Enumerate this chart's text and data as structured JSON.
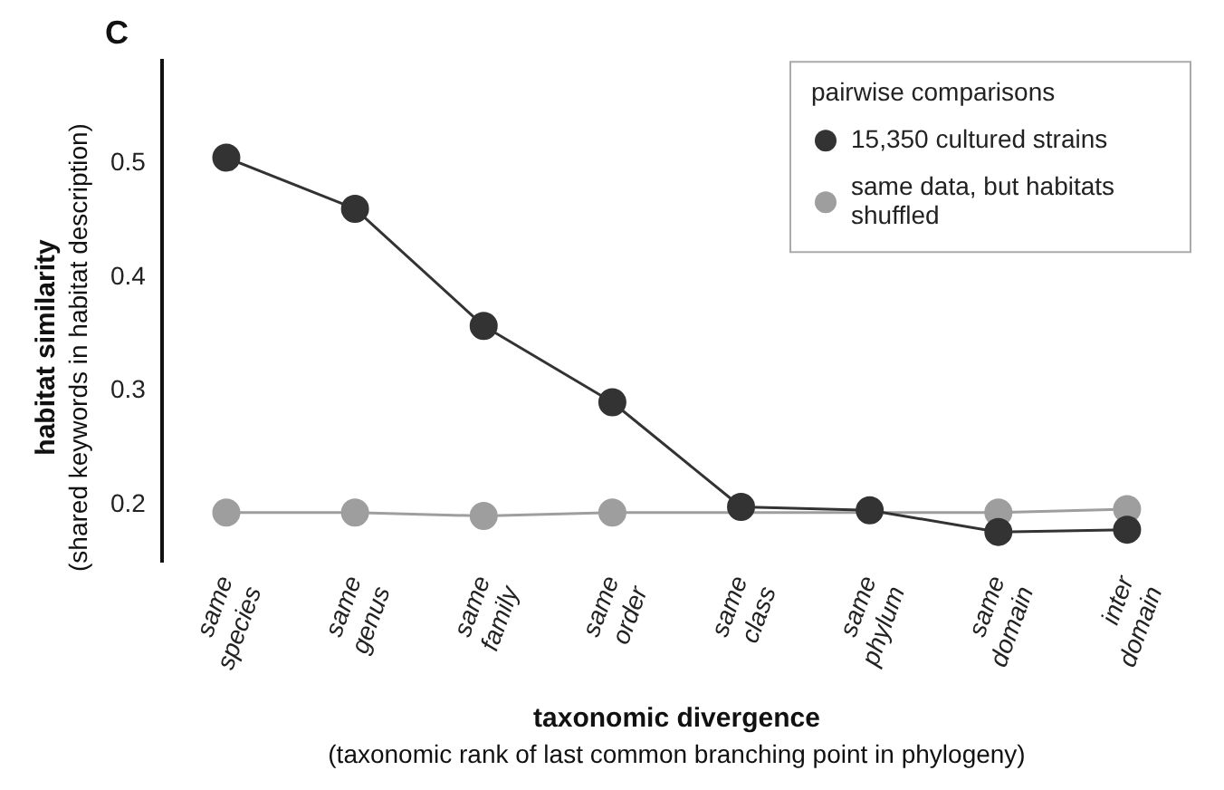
{
  "chart_data": {
    "type": "line",
    "title": "C",
    "xlabel": "taxonomic divergence\n(taxonomic rank of last common branching point in phylogeny)",
    "ylabel": "habitat similarity\n(shared keywords in habitat description)",
    "categories": [
      "same species",
      "same genus",
      "same family",
      "same order",
      "same class",
      "same phylum",
      "same domain",
      "inter domain"
    ],
    "series": [
      {
        "name": "15,350 cultured strains",
        "color": "#333333",
        "values": [
          0.505,
          0.46,
          0.357,
          0.29,
          0.198,
          0.195,
          0.176,
          0.178
        ]
      },
      {
        "name": "same data, but habitats shuffled",
        "color": "#9e9e9e",
        "values": [
          0.193,
          0.193,
          0.19,
          0.193,
          null,
          null,
          0.193,
          0.196
        ]
      }
    ],
    "legend_title": "pairwise comparisons",
    "legend": "top right",
    "marker": "circle",
    "line_style": "solid",
    "grid": false,
    "ylim": [
      0.15,
      0.59
    ],
    "yticks": [
      0.2,
      0.3,
      0.4,
      0.5
    ]
  }
}
